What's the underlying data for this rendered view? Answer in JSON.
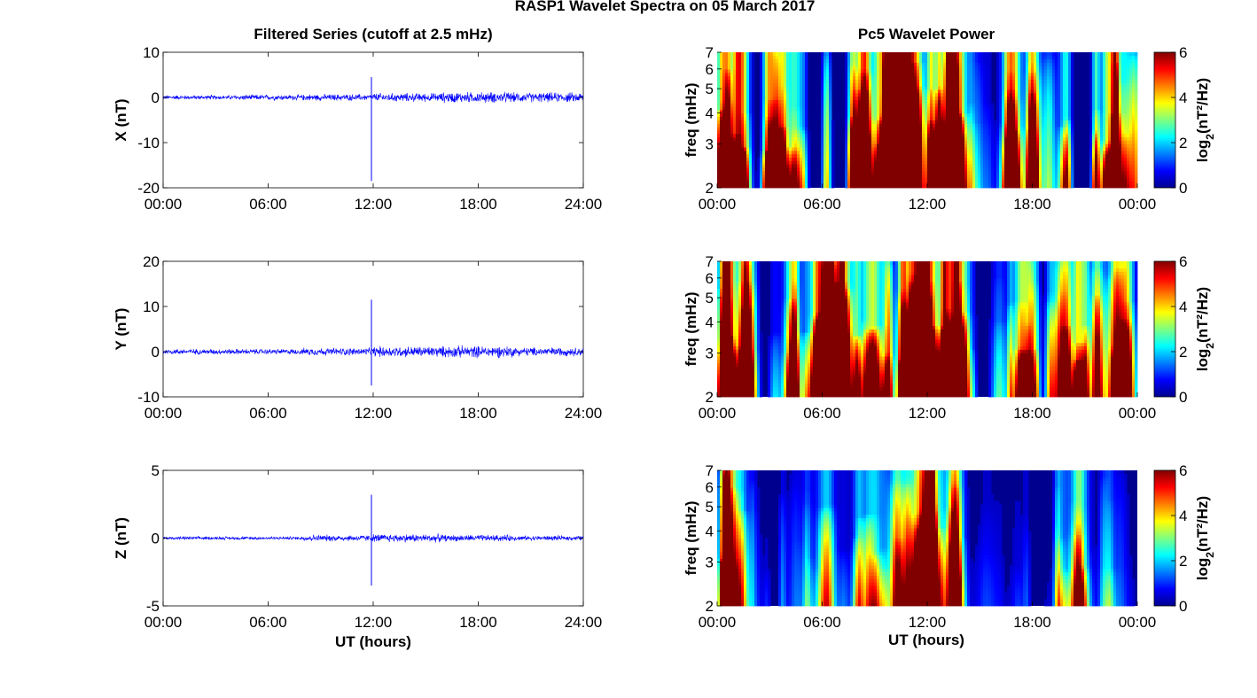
{
  "figure_title": "RASP1 Wavelet Spectra on 05 March 2017",
  "left_title": "Filtered Series (cutoff at 2.5 mHz)",
  "right_title": "Pc5 Wavelet Power",
  "x_label": "UT (hours)",
  "colors": {
    "trace": "#0000ff",
    "background_spec": "#00008f"
  },
  "chart_data": [
    {
      "type": "line",
      "name": "X",
      "ylabel": "X (nT)",
      "ylim": [
        -20,
        10
      ],
      "yticks": [
        10,
        0,
        -10,
        -20
      ],
      "xlim": [
        0,
        24
      ],
      "xticks": [
        "00:00",
        "06:00",
        "12:00",
        "18:00",
        "24:00"
      ],
      "noise_amplitude": [
        0.4,
        0.5,
        0.6,
        0.8,
        1.0,
        0.9
      ],
      "spike": {
        "x": 11.9,
        "max": 4.5,
        "min": -18.5
      },
      "grid": false
    },
    {
      "type": "line",
      "name": "Y",
      "ylabel": "Y (nT)",
      "ylim": [
        -10,
        20
      ],
      "yticks": [
        20,
        10,
        0,
        -10
      ],
      "xlim": [
        0,
        24
      ],
      "xticks": [
        "00:00",
        "06:00",
        "12:00",
        "18:00",
        "24:00"
      ],
      "noise_amplitude": [
        0.5,
        0.5,
        0.7,
        1.0,
        1.1,
        0.8
      ],
      "spike": {
        "x": 11.9,
        "max": 11.5,
        "min": -7.5
      },
      "grid": false
    },
    {
      "type": "line",
      "name": "Z",
      "ylabel": "Z (nT)",
      "ylim": [
        -5,
        5
      ],
      "yticks": [
        5,
        0,
        -5
      ],
      "xlim": [
        0,
        24
      ],
      "xticks": [
        "00:00",
        "06:00",
        "12:00",
        "18:00",
        "24:00"
      ],
      "noise_amplitude": [
        0.1,
        0.1,
        0.2,
        0.25,
        0.2,
        0.15
      ],
      "spike": {
        "x": 11.9,
        "max": 3.2,
        "min": -3.5
      },
      "grid": false
    },
    {
      "type": "heatmap",
      "name": "X wavelet power",
      "ylabel": "freq (mHz)",
      "yscale": "log",
      "ylim": [
        2,
        7
      ],
      "yticks": [
        7,
        6,
        5,
        4,
        3,
        2
      ],
      "xticks": [
        "00:00",
        "06:00",
        "12:00",
        "18:00",
        "00:00"
      ],
      "colorbar": {
        "label": "log2(nT²/Hz)",
        "ticks": [
          6,
          4,
          2,
          0
        ],
        "range": [
          0,
          6
        ]
      },
      "intensity_profile": [
        0.6,
        0.9,
        0.5,
        0.5,
        0.6,
        0.6,
        0.9,
        0.9,
        1.0,
        1.0,
        1.0,
        0.9,
        1.0,
        1.0,
        0.3,
        0.3,
        0.4,
        0.5,
        0.6,
        0.7,
        0.8,
        0.6,
        0.7,
        0.5
      ]
    },
    {
      "type": "heatmap",
      "name": "Y wavelet power",
      "ylabel": "freq (mHz)",
      "yscale": "log",
      "ylim": [
        2,
        7
      ],
      "yticks": [
        7,
        6,
        5,
        4,
        3,
        2
      ],
      "xticks": [
        "00:00",
        "06:00",
        "12:00",
        "18:00",
        "00:00"
      ],
      "colorbar": {
        "label": "log2(nT²/Hz)",
        "ticks": [
          6,
          4,
          2,
          0
        ],
        "range": [
          0,
          6
        ]
      },
      "intensity_profile": [
        0.9,
        0.6,
        0.4,
        0.5,
        0.5,
        0.6,
        1.0,
        1.0,
        1.0,
        1.0,
        1.0,
        1.0,
        1.0,
        1.0,
        0.3,
        0.4,
        0.5,
        0.5,
        0.4,
        0.6,
        0.7,
        0.7,
        0.8,
        0.5
      ]
    },
    {
      "type": "heatmap",
      "name": "Z wavelet power",
      "ylabel": "freq (mHz)",
      "yscale": "log",
      "ylim": [
        2,
        7
      ],
      "yticks": [
        7,
        6,
        5,
        4,
        3,
        2
      ],
      "xticks": [
        "00:00",
        "06:00",
        "12:00",
        "18:00",
        "00:00"
      ],
      "colorbar": {
        "label": "log2(nT²/Hz)",
        "ticks": [
          6,
          4,
          2,
          0
        ],
        "range": [
          0,
          6
        ]
      },
      "intensity_profile": [
        0.6,
        0.5,
        0.1,
        0.2,
        0.1,
        0.2,
        0.8,
        0.5,
        0.7,
        0.4,
        0.5,
        0.6,
        0.7,
        0.4,
        0.05,
        0.05,
        0.05,
        0.1,
        0.1,
        0.3,
        0.3,
        0.1,
        0.4,
        0.05
      ]
    }
  ]
}
